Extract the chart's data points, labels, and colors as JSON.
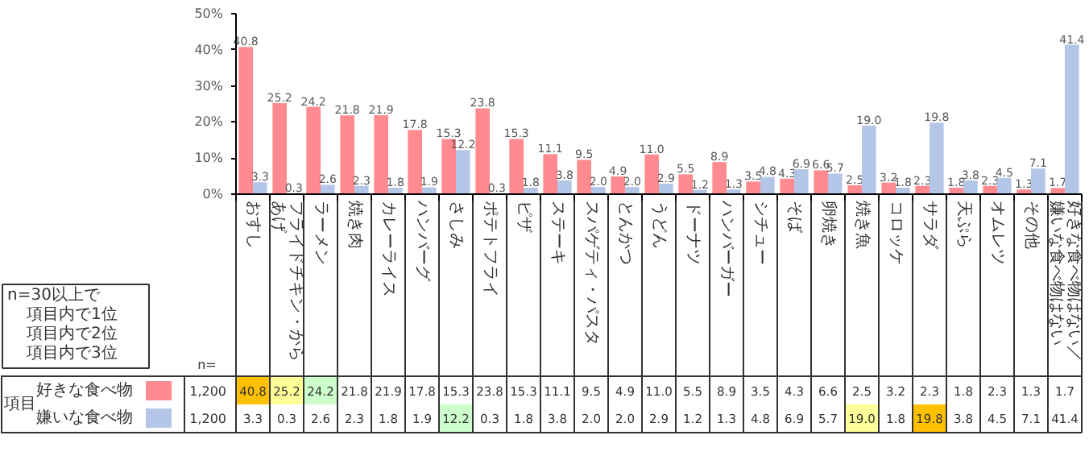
{
  "chart_data": {
    "type": "bar",
    "categories": [
      "おすし",
      "フライドチキン・からあげ",
      "ラーメン",
      "焼き肉",
      "カレーライス",
      "ハンバーグ",
      "さしみ",
      "ポテトフライ",
      "ピザ",
      "ステーキ",
      "スパゲティ・パスタ",
      "とんかつ",
      "うどん",
      "ドーナツ",
      "ハンバーガー",
      "シチュー",
      "そば",
      "卵焼き",
      "焼き魚",
      "コロッケ",
      "サラダ",
      "天ぷら",
      "オムレツ",
      "その他",
      "好きな食べ物はない／嫌いな食べ物はない"
    ],
    "series": [
      {
        "name": "好きな食べ物",
        "color": "#ff8a8f",
        "values": [
          40.8,
          25.2,
          24.2,
          21.8,
          21.9,
          17.8,
          15.3,
          23.8,
          15.3,
          11.1,
          9.5,
          4.9,
          11.0,
          5.5,
          8.9,
          3.5,
          4.3,
          6.6,
          2.5,
          3.2,
          2.3,
          1.8,
          2.3,
          1.3,
          1.7
        ],
        "value_labels": [
          "40.8",
          "25.2",
          "24.2",
          "21.8",
          "21.9",
          "17.8",
          "15.3",
          "23.8",
          "15.3",
          "11.1",
          "9.5",
          "4.9",
          "11.0",
          "5.5",
          "8.9",
          "3.5",
          "4.3",
          "6.6",
          "2.5",
          "3.2",
          "2.3",
          "1.8",
          "2.3",
          "1.3",
          "1.7"
        ]
      },
      {
        "name": "嫌いな食べ物",
        "color": "#b4c6e7",
        "values": [
          3.3,
          0.3,
          2.6,
          2.3,
          1.8,
          1.9,
          12.2,
          0.3,
          1.8,
          3.8,
          2.0,
          2.0,
          2.9,
          1.2,
          1.3,
          4.8,
          6.9,
          5.7,
          19.0,
          1.8,
          19.8,
          3.8,
          4.5,
          7.1,
          41.4
        ],
        "value_labels": [
          "3.3",
          "0.3",
          "2.6",
          "2.3",
          "1.8",
          "1.9",
          "12.2",
          "0.3",
          "1.8",
          "3.8",
          "2.0",
          "2.0",
          "2.9",
          "1.2",
          "1.3",
          "4.8",
          "6.9",
          "5.7",
          "19.0",
          "1.8",
          "19.8",
          "3.8",
          "4.5",
          "7.1",
          "41.4"
        ]
      }
    ],
    "ylim": [
      0,
      50
    ],
    "yticks": [
      {
        "value": 0,
        "label": "0%"
      },
      {
        "value": 10,
        "label": "10%"
      },
      {
        "value": 20,
        "label": "20%"
      },
      {
        "value": 30,
        "label": "30%"
      },
      {
        "value": 40,
        "label": "40%"
      },
      {
        "value": 50,
        "label": "50%"
      }
    ],
    "grid": false,
    "legend": "bottom left",
    "annotations": [
      "n=30以上で",
      "項目内で1位",
      "項目内で2位",
      "項目内で3位",
      "項目",
      "n=",
      "1,200",
      "1,200"
    ]
  }
}
